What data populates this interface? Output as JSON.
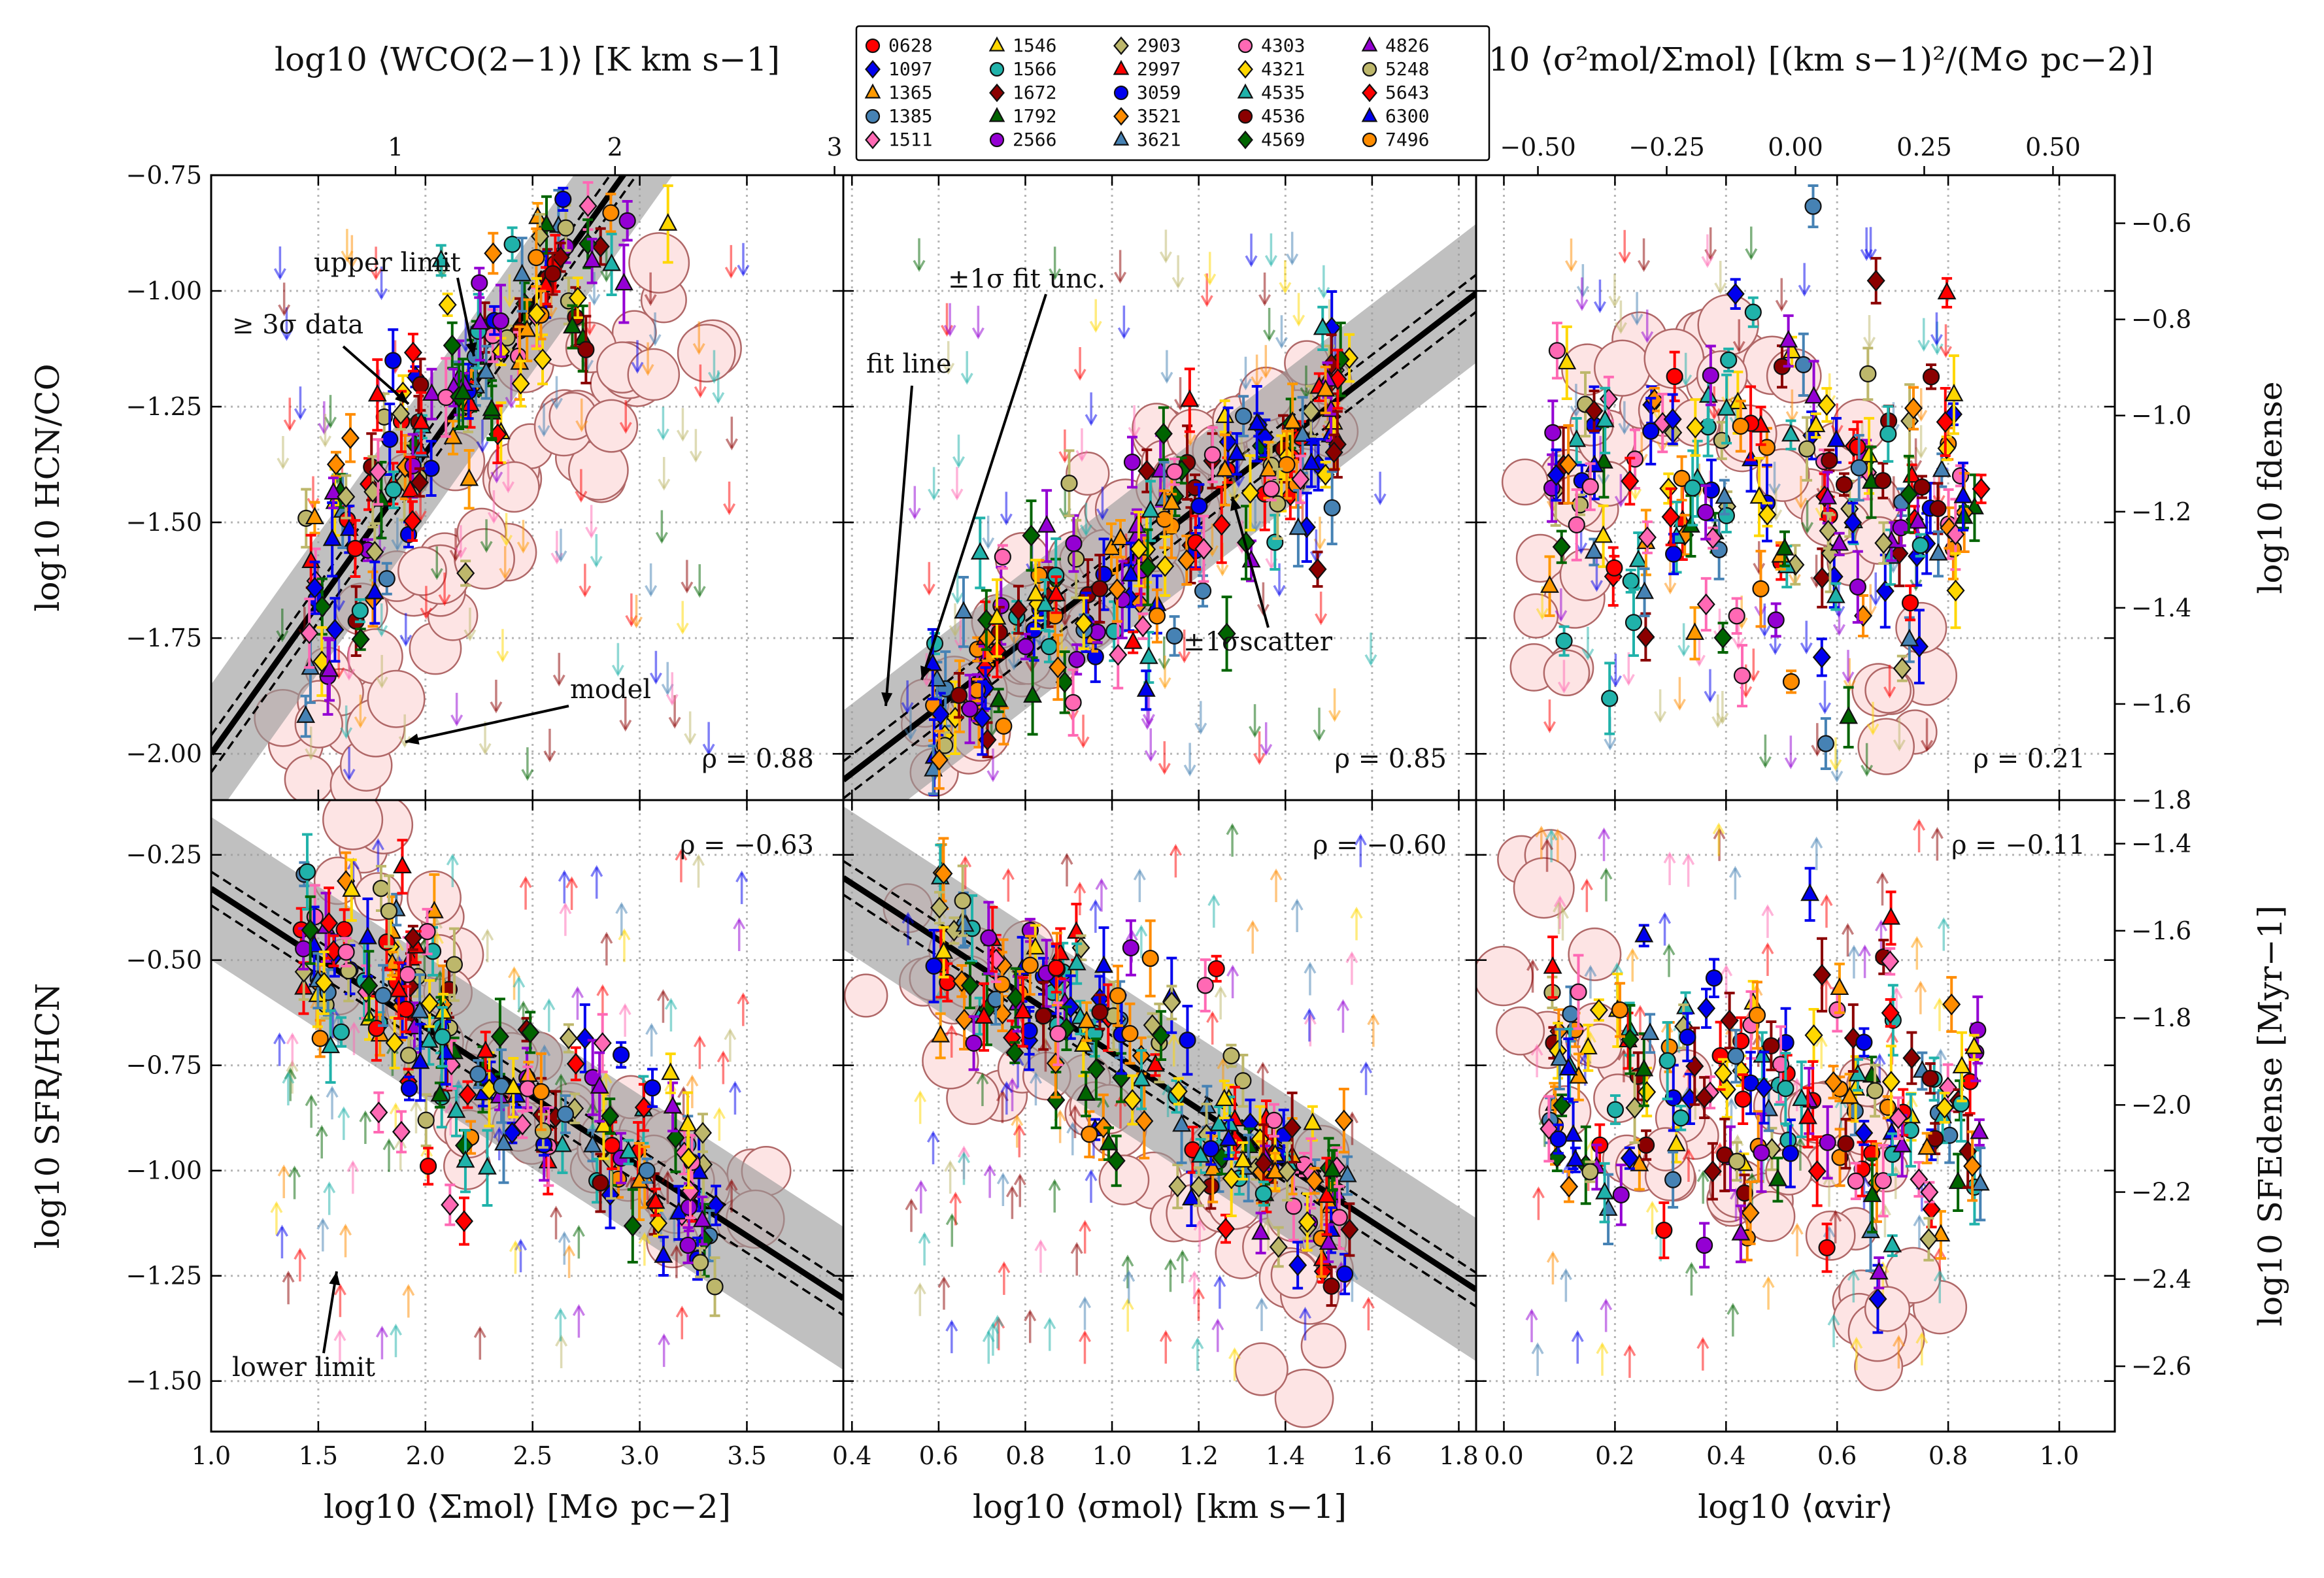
{
  "chart_data": {
    "type": "scatter",
    "layout": "2x3 panel grid",
    "legend": {
      "placement": "top-center",
      "columns": [
        [
          {
            "id": "0628",
            "color": "#ff0000",
            "marker": "circle"
          },
          {
            "id": "1097",
            "color": "#0000ee",
            "marker": "diamond"
          },
          {
            "id": "1365",
            "color": "#ff9900",
            "marker": "triangle"
          },
          {
            "id": "1385",
            "color": "#4682b4",
            "marker": "circle"
          },
          {
            "id": "1511",
            "color": "#ff69b4",
            "marker": "diamond"
          }
        ],
        [
          {
            "id": "1546",
            "color": "#ffd700",
            "marker": "triangle"
          },
          {
            "id": "1566",
            "color": "#20b2aa",
            "marker": "circle"
          },
          {
            "id": "1672",
            "color": "#8b0000",
            "marker": "diamond"
          },
          {
            "id": "1792",
            "color": "#006400",
            "marker": "triangle"
          },
          {
            "id": "2566",
            "color": "#9400d3",
            "marker": "circle"
          }
        ],
        [
          {
            "id": "2903",
            "color": "#bdb76b",
            "marker": "diamond"
          },
          {
            "id": "2997",
            "color": "#ff0000",
            "marker": "triangle"
          },
          {
            "id": "3059",
            "color": "#0000ee",
            "marker": "circle"
          },
          {
            "id": "3521",
            "color": "#ff8c00",
            "marker": "diamond"
          },
          {
            "id": "3621",
            "color": "#4682b4",
            "marker": "triangle"
          }
        ],
        [
          {
            "id": "4303",
            "color": "#ff69b4",
            "marker": "circle"
          },
          {
            "id": "4321",
            "color": "#ffd700",
            "marker": "diamond"
          },
          {
            "id": "4535",
            "color": "#20b2aa",
            "marker": "triangle"
          },
          {
            "id": "4536",
            "color": "#8b0000",
            "marker": "circle"
          },
          {
            "id": "4569",
            "color": "#006400",
            "marker": "diamond"
          }
        ],
        [
          {
            "id": "4826",
            "color": "#9400d3",
            "marker": "triangle"
          },
          {
            "id": "5248",
            "color": "#bdb76b",
            "marker": "circle"
          },
          {
            "id": "5643",
            "color": "#ff0000",
            "marker": "diamond"
          },
          {
            "id": "6300",
            "color": "#0000ee",
            "marker": "triangle"
          },
          {
            "id": "7496",
            "color": "#ff8c00",
            "marker": "circle"
          }
        ]
      ]
    },
    "axes": {
      "x_bottom": [
        {
          "label": "log10 ⟨Σmol⟩ [M⊙ pc−2]",
          "xlim": [
            1.0,
            3.95
          ],
          "ticks": [
            1.0,
            1.5,
            2.0,
            2.5,
            3.0,
            3.5
          ],
          "tick_labels": [
            "1.0",
            "1.5",
            "2.0",
            "2.5",
            "3.0",
            "3.5"
          ]
        },
        {
          "label": "log10 ⟨σmol⟩ [km s−1]",
          "xlim": [
            0.38,
            1.84
          ],
          "ticks": [
            0.4,
            0.6,
            0.8,
            1.0,
            1.2,
            1.4,
            1.6,
            1.8
          ],
          "tick_labels": [
            "0.4",
            "0.6",
            "0.8",
            "1.0",
            "1.2",
            "1.4",
            "1.6",
            "1.8"
          ]
        },
        {
          "label": "log10 ⟨αvir⟩",
          "xlim": [
            -0.05,
            1.1
          ],
          "ticks": [
            0.0,
            0.2,
            0.4,
            0.6,
            0.8,
            1.0
          ],
          "tick_labels": [
            "0.0",
            "0.2",
            "0.4",
            "0.6",
            "0.8",
            "1.0"
          ]
        }
      ],
      "x_top": [
        {
          "label": "log10 ⟨WCO(2−1)⟩ [K km s−1]",
          "xlim": [
            0.16,
            3.04
          ],
          "ticks": [
            1,
            2,
            3
          ],
          "tick_labels": [
            "1",
            "2",
            "3"
          ]
        },
        {
          "label": "log10 ⟨σ²mol/Σmol⟩ [(km s−1)²/(M⊙ pc−2)]",
          "xlim": [
            -0.62,
            0.62
          ],
          "ticks": [
            -0.5,
            -0.25,
            0.0,
            0.25,
            0.5
          ],
          "tick_labels": [
            "−0.50",
            "−0.25",
            "0.00",
            "0.25",
            "0.50"
          ]
        }
      ],
      "y_left": [
        {
          "label": "log10 HCN/CO",
          "ylim": [
            -2.1,
            -0.75
          ],
          "ticks": [
            -2.0,
            -1.75,
            -1.5,
            -1.25,
            -1.0,
            -0.75
          ],
          "tick_labels": [
            "−2.00",
            "−1.75",
            "−1.50",
            "−1.25",
            "−1.00",
            "−0.75"
          ]
        },
        {
          "label": "log10 SFR/HCN",
          "ylim": [
            -1.62,
            -0.12
          ],
          "ticks": [
            -1.5,
            -1.25,
            -1.0,
            -0.75,
            -0.5,
            -0.25
          ],
          "tick_labels": [
            "−1.50",
            "−1.25",
            "−1.00",
            "−0.75",
            "−0.50",
            "−0.25"
          ]
        }
      ],
      "y_right": [
        {
          "label": "log10 fdense",
          "ylim": [
            -1.8,
            -0.5
          ],
          "ticks": [
            -1.8,
            -1.6,
            -1.4,
            -1.2,
            -1.0,
            -0.8,
            -0.6
          ],
          "tick_labels": [
            "−1.8",
            "−1.6",
            "−1.4",
            "−1.2",
            "−1.0",
            "−0.8",
            "−0.6"
          ]
        },
        {
          "label": "log10 SFEdense [Myr−1]",
          "ylim": [
            -2.75,
            -1.3
          ],
          "ticks": [
            -2.6,
            -2.4,
            -2.2,
            -2.0,
            -1.8,
            -1.6,
            -1.4
          ],
          "tick_labels": [
            "−2.6",
            "−2.4",
            "−2.2",
            "−2.0",
            "−1.8",
            "−1.6",
            "−1.4"
          ]
        }
      ]
    },
    "grid": true,
    "panels": [
      {
        "row": 0,
        "col": 0,
        "rho": "ρ = 0.88",
        "fit": {
          "slope": 0.65,
          "intercept": -2.65
        },
        "fit_unc": 0.04,
        "scatter": 0.15,
        "model": [
          [
            1.45,
            -2.08
          ],
          [
            1.6,
            -1.92
          ],
          [
            1.8,
            -1.78
          ],
          [
            2.0,
            -1.65
          ],
          [
            2.2,
            -1.52
          ],
          [
            2.4,
            -1.4
          ],
          [
            2.6,
            -1.3
          ],
          [
            2.8,
            -1.2
          ],
          [
            3.0,
            -1.15
          ],
          [
            3.2,
            -1.12
          ]
        ]
      },
      {
        "row": 0,
        "col": 1,
        "rho": "ρ = 0.85",
        "fit": {
          "slope": 0.72,
          "intercept": -2.33
        },
        "fit_unc": 0.04,
        "scatter": 0.15,
        "model": [
          [
            0.6,
            -2.05
          ],
          [
            0.7,
            -1.9
          ],
          [
            0.8,
            -1.75
          ],
          [
            0.9,
            -1.62
          ],
          [
            1.0,
            -1.52
          ],
          [
            1.1,
            -1.42
          ],
          [
            1.2,
            -1.35
          ],
          [
            1.3,
            -1.28
          ],
          [
            1.4,
            -1.22
          ],
          [
            1.5,
            -1.18
          ]
        ]
      },
      {
        "row": 0,
        "col": 2,
        "rho": "ρ = 0.21",
        "fit": null,
        "model": [
          [
            0.05,
            -1.9
          ],
          [
            0.1,
            -1.6
          ],
          [
            0.15,
            -1.35
          ],
          [
            0.2,
            -1.2
          ],
          [
            0.3,
            -1.15
          ],
          [
            0.4,
            -1.2
          ],
          [
            0.5,
            -1.3
          ],
          [
            0.6,
            -1.45
          ],
          [
            0.65,
            -1.7
          ],
          [
            0.7,
            -1.95
          ]
        ]
      },
      {
        "row": 1,
        "col": 0,
        "rho": "ρ = −0.63",
        "fit": {
          "slope": -0.33,
          "intercept": 0.0
        },
        "fit_unc": 0.04,
        "scatter": 0.17,
        "model": [
          [
            1.6,
            -0.25
          ],
          [
            1.8,
            -0.4
          ],
          [
            2.0,
            -0.55
          ],
          [
            2.2,
            -0.7
          ],
          [
            2.4,
            -0.85
          ],
          [
            2.6,
            -0.95
          ],
          [
            2.8,
            -0.95
          ],
          [
            3.0,
            -0.9
          ],
          [
            3.3,
            -1.1
          ],
          [
            3.5,
            -1.05
          ]
        ]
      },
      {
        "row": 1,
        "col": 1,
        "rho": "ρ = −0.60",
        "fit": {
          "slope": -0.67,
          "intercept": -0.05
        },
        "fit_unc": 0.04,
        "scatter": 0.17,
        "model": [
          [
            0.45,
            -0.35
          ],
          [
            0.6,
            -0.55
          ],
          [
            0.8,
            -0.75
          ],
          [
            1.0,
            -0.9
          ],
          [
            1.2,
            -1.0
          ],
          [
            1.3,
            -1.1
          ],
          [
            1.4,
            -1.0
          ],
          [
            1.45,
            -1.25
          ],
          [
            1.5,
            -1.45
          ]
        ]
      },
      {
        "row": 1,
        "col": 2,
        "rho": "ρ = −0.11",
        "fit": null,
        "model": [
          [
            0.05,
            -0.25
          ],
          [
            0.1,
            -0.6
          ],
          [
            0.2,
            -0.8
          ],
          [
            0.3,
            -0.95
          ],
          [
            0.4,
            -1.0
          ],
          [
            0.5,
            -0.95
          ],
          [
            0.6,
            -0.8
          ],
          [
            0.65,
            -1.1
          ],
          [
            0.7,
            -1.3
          ],
          [
            0.75,
            -1.45
          ]
        ]
      }
    ],
    "annotations": {
      "upper_limit": "upper limit",
      "data3sigma": "≥ 3σ data",
      "model": "model",
      "fit_unc": "±1σ fit unc.",
      "fit_line": "fit line",
      "scatter": "±1σscatter",
      "lower_limit": "lower limit"
    }
  }
}
